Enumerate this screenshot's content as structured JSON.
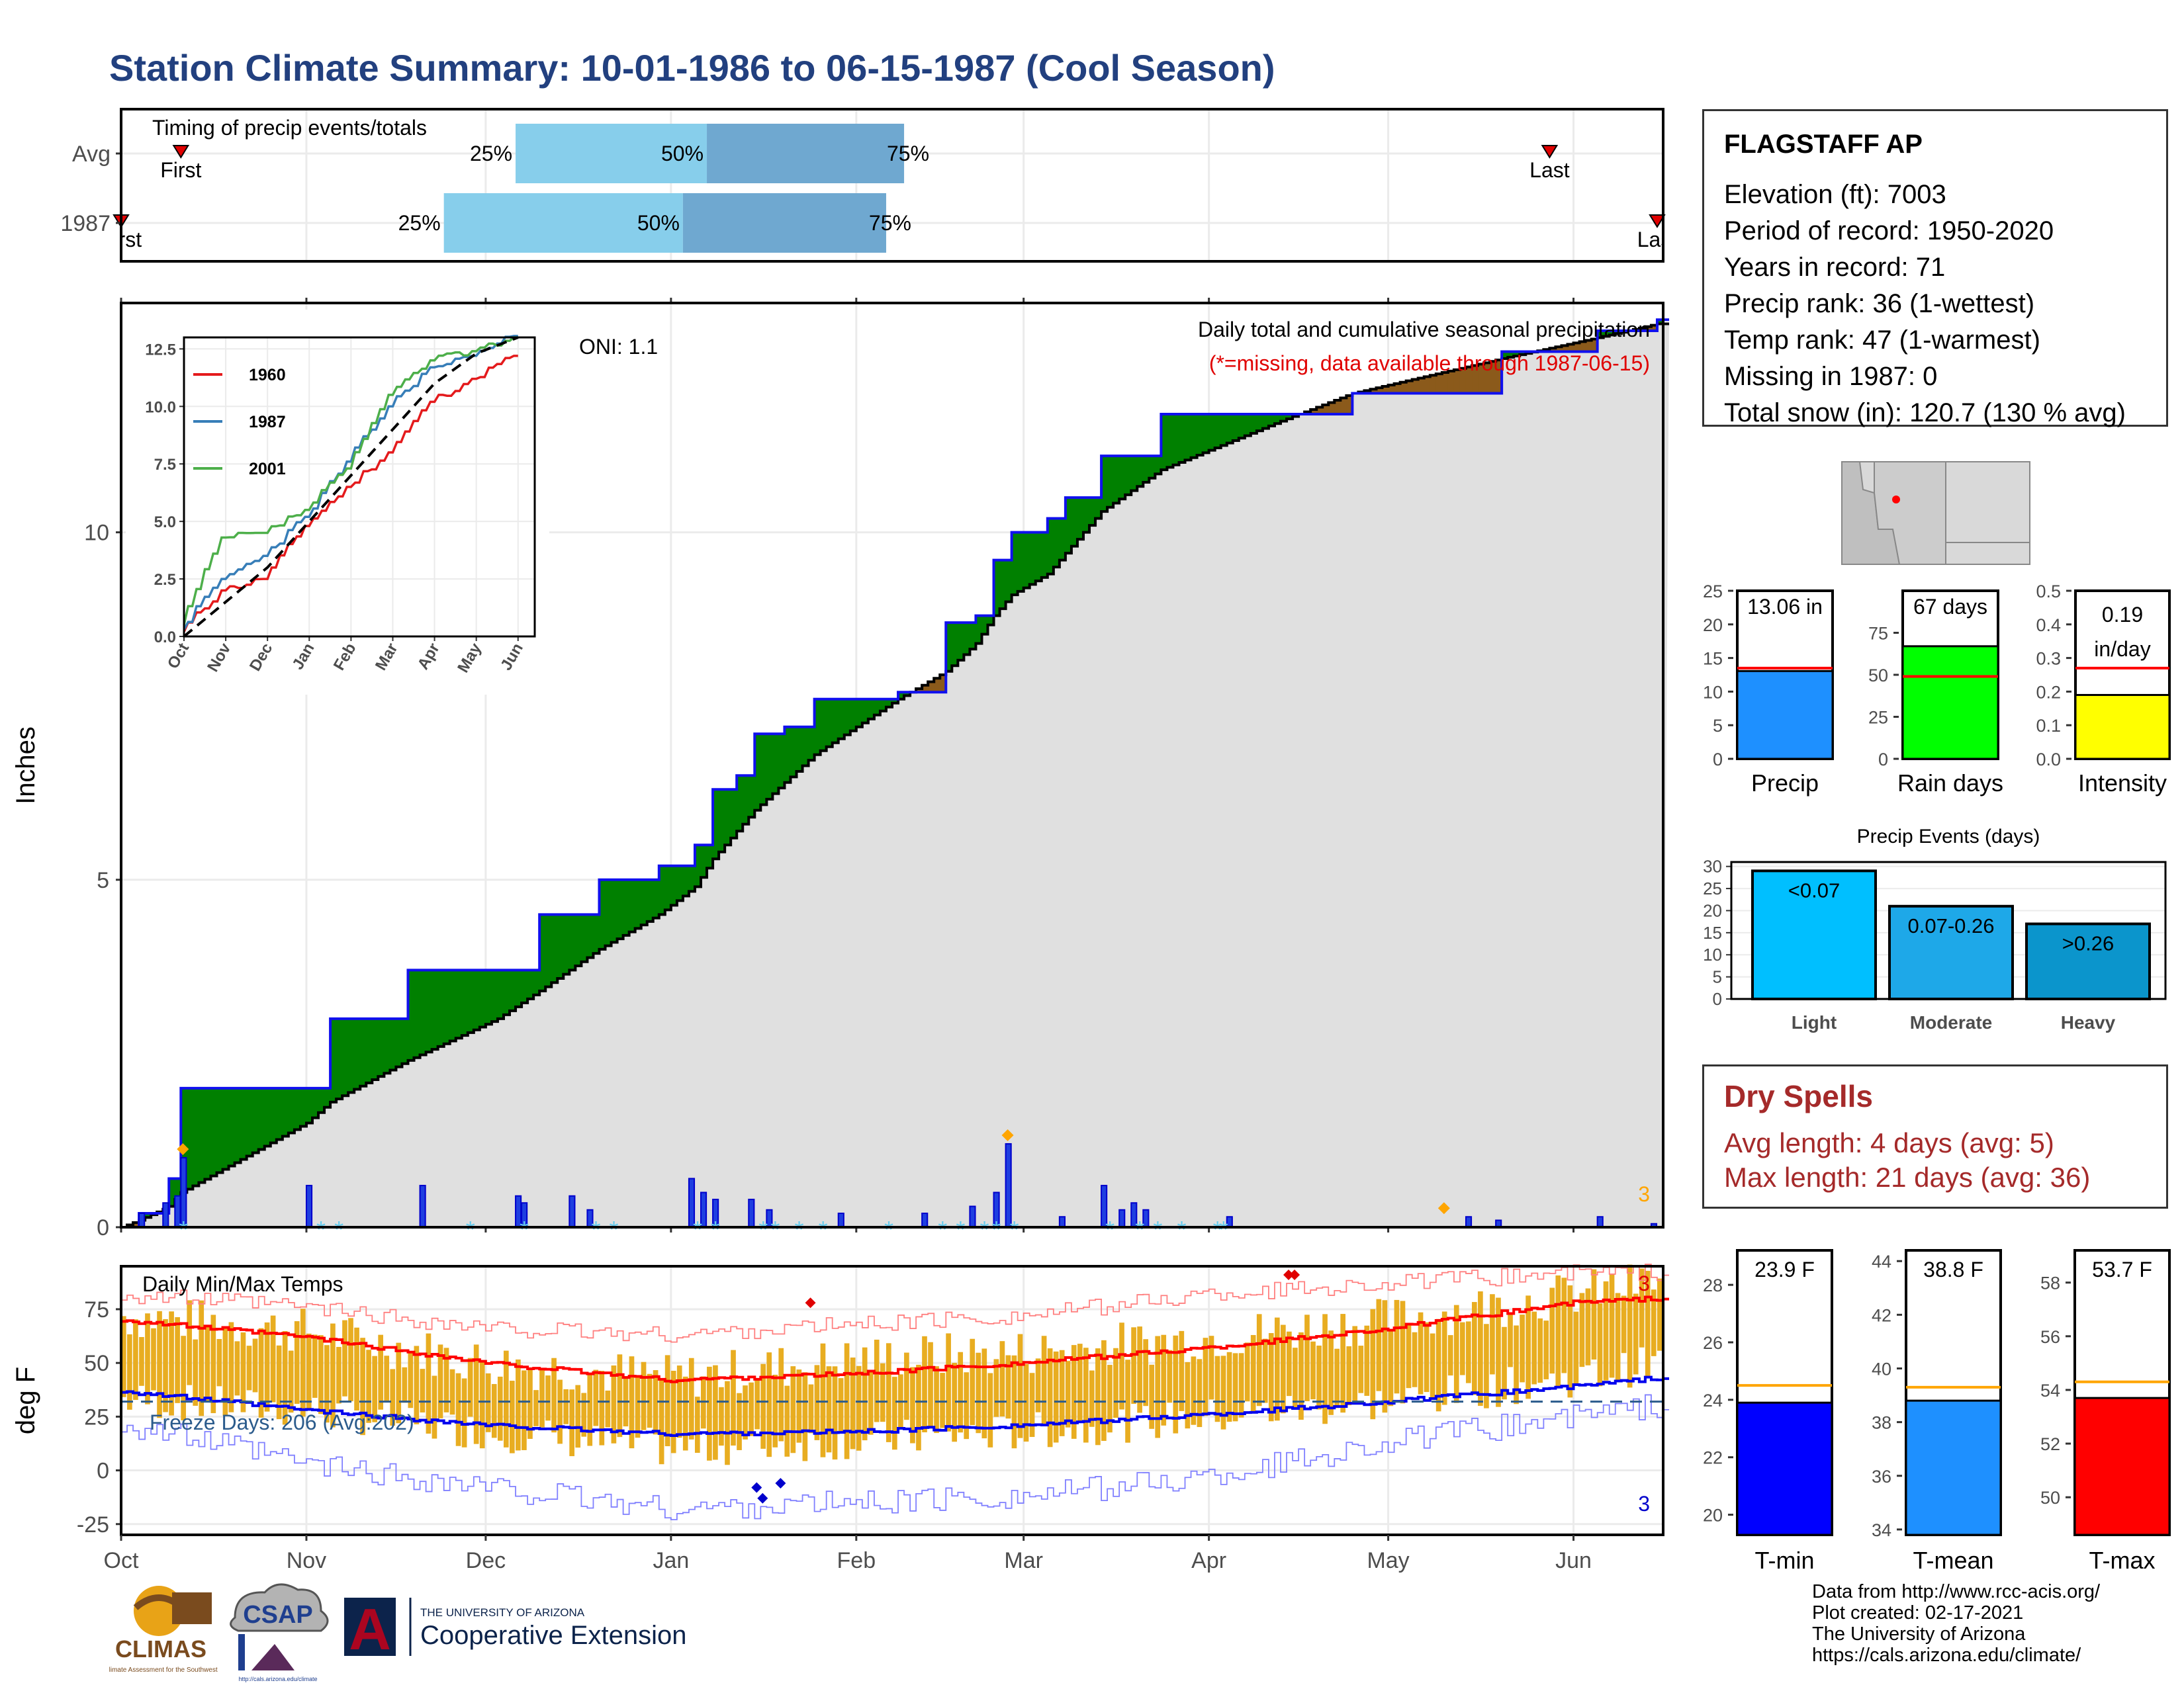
{
  "title": "Station Climate Summary: 10-01-1986 to 06-15-1987 (Cool Season)",
  "timing": {
    "caption": "Timing of precip events/totals",
    "rows": [
      {
        "label": "Avg",
        "first": "First",
        "last": "Last",
        "p25": "25%",
        "p50": "50%",
        "p75": "75%"
      },
      {
        "label": "1987",
        "first": "First",
        "last": "Last",
        "p25": "25%",
        "p50": "50%",
        "p75": "75%"
      }
    ],
    "avg_dates": {
      "first": "1986-10-11",
      "p25": "1986-12-06",
      "p50": "1987-01-07",
      "p75": "1987-02-09",
      "last": "1987-05-28"
    },
    "year_dates": {
      "first": "1986-10-01",
      "p25": "1986-11-24",
      "p50": "1987-01-03",
      "p75": "1987-02-06",
      "last": "1987-06-15"
    }
  },
  "precip": {
    "ylabel": "Inches",
    "oni": "ONI: 1.1",
    "caption": "Daily total and cumulative seasonal precipitation",
    "missing_note": "(*=missing, data available through 1987-06-15)",
    "corner_count": "3"
  },
  "inset": {
    "legend": [
      "1960",
      "1987",
      "2001"
    ],
    "colors": {
      "1960": "#e41a1c",
      "1987": "#377eb8",
      "2001": "#4daf4a"
    },
    "ylim": [
      0,
      13
    ],
    "yticks": [
      "0.0",
      "2.5",
      "5.0",
      "7.5",
      "10.0",
      "12.5"
    ],
    "xticks": [
      "Oct",
      "Nov",
      "Dec",
      "Jan",
      "Feb",
      "Mar",
      "Apr",
      "May",
      "Jun"
    ]
  },
  "temps": {
    "ylabel": "deg F",
    "caption": "Daily Min/Max Temps",
    "freeze": "Freeze Days: 206 (Avg:202)",
    "corner_high": "3",
    "corner_low": "3",
    "yticks": [
      "75",
      "50",
      "25",
      "0",
      "-25"
    ]
  },
  "xaxis": [
    "Oct",
    "Nov",
    "Dec",
    "Jan",
    "Feb",
    "Mar",
    "Apr",
    "May",
    "Jun"
  ],
  "station": {
    "name": "FLAGSTAFF AP",
    "lines": [
      "Elevation (ft): 7003",
      "Period of record: 1950-2020",
      "Years in record: 71",
      "Precip rank: 36 (1-wettest)",
      "Temp rank: 47 (1-warmest)",
      "Missing in 1987: 0",
      "Total snow (in): 120.7 (130 % avg)"
    ]
  },
  "summary_bars": [
    {
      "label": "Precip",
      "value_text": "13.06 in",
      "value": 13.06,
      "avg": 13.5,
      "ymax": 25,
      "ticks": [
        "0",
        "5",
        "10",
        "15",
        "20",
        "25"
      ],
      "color": "#1e90ff"
    },
    {
      "label": "Rain days",
      "value_text": "67 days",
      "value": 67,
      "avg": 49,
      "ymax": 100,
      "ticks": [
        "0",
        "25",
        "50",
        "75"
      ],
      "color": "#00ff00"
    },
    {
      "label": "Intensity",
      "value_text": "0.19 in/day",
      "value": 0.19,
      "avg": 0.27,
      "ymax": 0.5,
      "ticks": [
        "0.0",
        "0.1",
        "0.2",
        "0.3",
        "0.4",
        "0.5"
      ],
      "color": "#ffff00"
    }
  ],
  "events": {
    "title": "Precip Events (days)",
    "ticks": [
      "0",
      "5",
      "10",
      "15",
      "20",
      "25",
      "30"
    ],
    "bars": [
      {
        "category": "Light",
        "label": "<0.07",
        "value": 29,
        "color": "#00bfff"
      },
      {
        "category": "Moderate",
        "label": "0.07-0.26",
        "value": 21,
        "color": "#1ea8e8"
      },
      {
        "category": "Heavy",
        "label": ">0.26",
        "value": 17,
        "color": "#0b95cc"
      }
    ]
  },
  "dry_spells": {
    "title": "Dry Spells",
    "avg": "Avg length: 4 days (avg: 5)",
    "max": "Max length: 21 days (avg: 36)"
  },
  "temp_bars": [
    {
      "label": "T-min",
      "value_text": "23.9 F",
      "value": 23.9,
      "avg": 24.5,
      "ymin": 19.3,
      "ymax": 29.2,
      "ticks": [
        "20",
        "22",
        "24",
        "26",
        "28"
      ],
      "tickvals": [
        20,
        22,
        24,
        26,
        28
      ],
      "color": "#0000ff"
    },
    {
      "label": "T-mean",
      "value_text": "38.8 F",
      "value": 38.8,
      "avg": 39.3,
      "ymin": 33.8,
      "ymax": 44.4,
      "ticks": [
        "34",
        "36",
        "38",
        "40",
        "42",
        "44"
      ],
      "tickvals": [
        34,
        36,
        38,
        40,
        42,
        44
      ],
      "color": "#1e90ff"
    },
    {
      "label": "T-max",
      "value_text": "53.7 F",
      "value": 53.7,
      "avg": 54.3,
      "ymin": 48.6,
      "ymax": 59.2,
      "ticks": [
        "50",
        "52",
        "54",
        "56",
        "58"
      ],
      "tickvals": [
        50,
        52,
        54,
        56,
        58
      ],
      "color": "#ff0000"
    }
  ],
  "credits": [
    "Data from http://www.rcc-acis.org/",
    "Plot created: 02-17-2021",
    "The University of Arizona",
    "https://cals.arizona.edu/climate/"
  ],
  "logos": {
    "climas": "CLIMAS",
    "climas_sub": "Climate Assessment for the Southwest",
    "csap": "CSAP",
    "csap_url": "http://cals.arizona.edu/climate",
    "ua": "A",
    "ua_top": "THE UNIVERSITY OF ARIZONA",
    "ua_main": "Cooperative Extension"
  },
  "chart_data": [
    {
      "type": "area",
      "title": "Daily total and cumulative seasonal precipitation",
      "xlabel": "",
      "ylabel": "Inches",
      "ylim": [
        0,
        13.3
      ],
      "x": [
        "1986-10-01",
        "1986-10-04",
        "1986-10-09",
        "1986-10-11",
        "1986-11-01",
        "1986-11-05",
        "1986-11-18",
        "1986-12-03",
        "1986-12-10",
        "1986-12-20",
        "1986-12-30",
        "1987-01-05",
        "1987-01-08",
        "1987-01-12",
        "1987-01-15",
        "1987-01-20",
        "1987-01-25",
        "1987-02-01",
        "1987-02-08",
        "1987-02-16",
        "1987-02-21",
        "1987-02-24",
        "1987-02-27",
        "1987-03-05",
        "1987-03-08",
        "1987-03-14",
        "1987-03-24",
        "1987-04-13",
        "1987-04-25",
        "1987-05-20",
        "1987-06-05",
        "1987-06-15"
      ],
      "series": [
        {
          "name": "1987",
          "values": [
            0.0,
            0.2,
            0.7,
            2.0,
            2.0,
            3.0,
            3.7,
            3.7,
            4.5,
            5.0,
            5.2,
            5.5,
            6.3,
            6.5,
            7.1,
            7.2,
            7.6,
            7.6,
            7.7,
            8.7,
            8.8,
            9.6,
            10.0,
            10.2,
            10.5,
            11.1,
            11.7,
            11.7,
            12.0,
            12.6,
            12.9,
            13.06
          ]
        },
        {
          "name": "Avg",
          "values": [
            0.0,
            0.1,
            0.3,
            0.5,
            1.5,
            1.8,
            2.4,
            3.0,
            3.4,
            4.0,
            4.5,
            4.9,
            5.3,
            5.7,
            6.0,
            6.4,
            6.8,
            7.2,
            7.6,
            8.0,
            8.4,
            8.8,
            9.1,
            9.4,
            9.7,
            10.3,
            10.9,
            11.6,
            12.0,
            12.5,
            12.8,
            13.0
          ]
        }
      ],
      "daily": [
        {
          "date": "1986-10-04",
          "value": 0.2
        },
        {
          "date": "1986-10-08",
          "value": 0.35
        },
        {
          "date": "1986-10-10",
          "value": 0.45
        },
        {
          "date": "1986-10-11",
          "value": 1.0
        },
        {
          "date": "1986-11-01",
          "value": 0.6
        },
        {
          "date": "1986-11-20",
          "value": 0.6
        },
        {
          "date": "1986-12-06",
          "value": 0.45
        },
        {
          "date": "1986-12-07",
          "value": 0.35
        },
        {
          "date": "1986-12-15",
          "value": 0.45
        },
        {
          "date": "1986-12-18",
          "value": 0.25
        },
        {
          "date": "1987-01-04",
          "value": 0.7
        },
        {
          "date": "1987-01-06",
          "value": 0.5
        },
        {
          "date": "1987-01-08",
          "value": 0.4
        },
        {
          "date": "1987-01-14",
          "value": 0.4
        },
        {
          "date": "1987-01-17",
          "value": 0.25
        },
        {
          "date": "1987-01-29",
          "value": 0.2
        },
        {
          "date": "1987-02-12",
          "value": 0.2
        },
        {
          "date": "1987-02-20",
          "value": 0.3
        },
        {
          "date": "1987-02-24",
          "value": 0.5
        },
        {
          "date": "1987-02-26",
          "value": 1.2
        },
        {
          "date": "1987-03-07",
          "value": 0.15
        },
        {
          "date": "1987-03-14",
          "value": 0.6
        },
        {
          "date": "1987-03-17",
          "value": 0.25
        },
        {
          "date": "1987-03-19",
          "value": 0.35
        },
        {
          "date": "1987-03-21",
          "value": 0.25
        },
        {
          "date": "1987-04-04",
          "value": 0.15
        },
        {
          "date": "1987-05-14",
          "value": 0.15
        },
        {
          "date": "1987-05-19",
          "value": 0.1
        },
        {
          "date": "1987-06-05",
          "value": 0.15
        },
        {
          "date": "1987-06-14",
          "value": 0.05
        }
      ]
    },
    {
      "type": "line",
      "title": "",
      "xlabel": "",
      "ylabel": "",
      "ylim": [
        0,
        13
      ],
      "x": [
        "Oct",
        "Nov",
        "Dec",
        "Jan",
        "Feb",
        "Mar",
        "Apr",
        "May",
        "Jun"
      ],
      "series": [
        {
          "name": "1960",
          "values": [
            0.2,
            2.0,
            2.5,
            4.8,
            6.5,
            8.0,
            10.2,
            11.2,
            12.2
          ]
        },
        {
          "name": "1987",
          "values": [
            0.3,
            2.5,
            3.5,
            5.2,
            7.6,
            10.0,
            11.7,
            12.2,
            13.06
          ]
        },
        {
          "name": "2001",
          "values": [
            0.5,
            4.3,
            4.5,
            5.5,
            7.3,
            10.5,
            12.0,
            12.4,
            13.0
          ]
        },
        {
          "name": "Avg",
          "values": [
            0.0,
            1.5,
            3.0,
            5.0,
            7.0,
            9.0,
            11.0,
            12.3,
            13.0
          ]
        }
      ]
    },
    {
      "type": "bar",
      "title": "Daily Min/Max Temps",
      "xlabel": "",
      "ylabel": "deg F",
      "ylim": [
        -30,
        95
      ],
      "x": [
        "1986-10-01",
        "1986-11-01",
        "1986-12-01",
        "1987-01-01",
        "1987-02-01",
        "1987-03-01",
        "1987-04-01",
        "1987-05-01",
        "1987-06-01",
        "1987-06-15"
      ],
      "series": [
        {
          "name": "Avg max",
          "values": [
            70,
            62,
            50,
            42,
            45,
            50,
            57,
            66,
            78,
            80
          ]
        },
        {
          "name": "Avg min",
          "values": [
            37,
            28,
            21,
            17,
            18,
            21,
            26,
            32,
            39,
            43
          ]
        },
        {
          "name": "Record max",
          "values": [
            82,
            76,
            66,
            63,
            68,
            72,
            82,
            87,
            92,
            92
          ]
        },
        {
          "name": "Record min",
          "values": [
            22,
            3,
            -8,
            -18,
            -15,
            -12,
            -3,
            13,
            25,
            30
          ]
        },
        {
          "name": "Daily max",
          "values": [
            72,
            65,
            50,
            43,
            52,
            55,
            62,
            70,
            82,
            88
          ]
        },
        {
          "name": "Daily min",
          "values": [
            33,
            28,
            18,
            10,
            14,
            18,
            25,
            32,
            43,
            50
          ]
        }
      ],
      "freeze_line": 32
    }
  ]
}
